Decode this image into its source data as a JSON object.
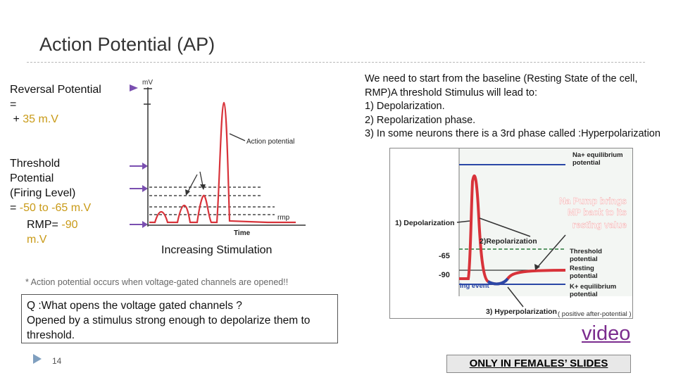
{
  "title": "Action Potential (AP)",
  "left": {
    "reversal_lines": [
      "Reversal Potential",
      "=",
      "+"
    ],
    "reversal_value": "35 m.V",
    "threshold_lines": [
      "Threshold",
      "Potential",
      "(Firing Level)",
      "="
    ],
    "threshold_value": "-50 to -65 m.V",
    "rmp_label": "RMP=",
    "rmp_value": "-90",
    "rmp_unit": "m.V",
    "increasing": "Increasing Stimulation"
  },
  "left_figure": {
    "y_axis": "mV",
    "x_axis": "Time",
    "rmp_label": "rmp",
    "ap_label": "Action potential"
  },
  "note": "* Action potential occurs when voltage-gated channels are opened!!",
  "question_box": {
    "question": "Q :What opens the voltage gated channels ?",
    "answer": "Opened by a stimulus strong enough to depolarize them to threshold."
  },
  "page_number": "14",
  "right_text": [
    "We need to start from the baseline (Resting State of the cell, RMP)A threshold Stimulus will lead to:",
    "1) Depolarization.",
    "2) Repolarization phase.",
    "3) In some neurons there is a 3rd phase called :Hyperpolarization"
  ],
  "right_figure": {
    "na_eq": [
      "Na+ equilibrium",
      "potential"
    ],
    "na_pump": [
      "Na Pump brings",
      "MP back to its",
      "resting value"
    ],
    "depol": "1) Depolarization",
    "repol": "2)Repolarization",
    "minus65": "-65",
    "minus90": "-90",
    "threshold": [
      "Threshold",
      "potential"
    ],
    "resting": [
      "Resting",
      "potential"
    ],
    "k_eq": [
      "K+ equilibrium",
      "potential"
    ],
    "event": "ing event",
    "hyperpol": "3) Hyperpolarization",
    "positive_after": "( positive after-potential )"
  },
  "video_link": "video",
  "females_only": "ONLY IN FEMALES’ SLIDES",
  "colors": {
    "accent_yellow": "#c99a17",
    "video_purple": "#7b2c8e",
    "trace_red": "#d8333a",
    "blue_lines": "#2a47a6"
  }
}
